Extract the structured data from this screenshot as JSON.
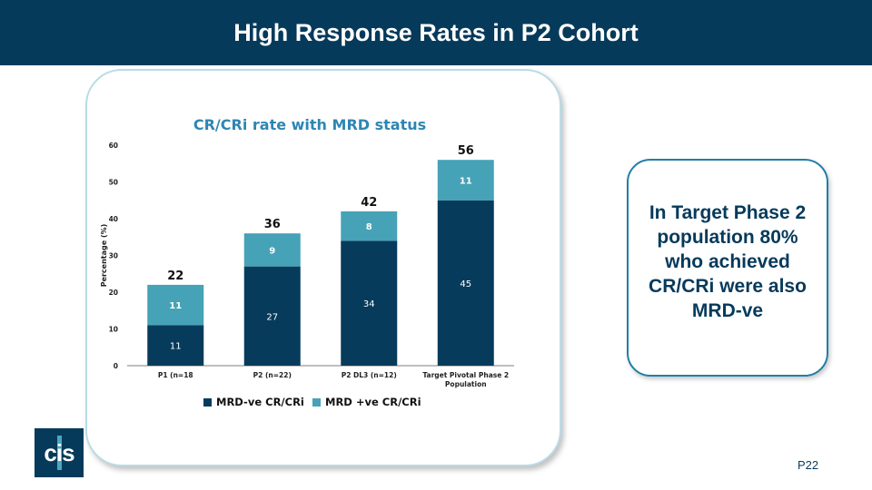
{
  "slide": {
    "title": "High Response Rates in P2 Cohort",
    "page_number": "P22",
    "callout": "In Target Phase 2 population 80% who achieved CR/CRi were also MRD-ve",
    "logo_text": "cis"
  },
  "colors": {
    "header_bg": "#063a5b",
    "mrd_neg": "#073b5c",
    "mrd_pos": "#46a2b7",
    "chart_title": "#2e86b3"
  },
  "chart_data": {
    "type": "bar",
    "stacked": true,
    "title": "CR/CRi rate with MRD status",
    "ylabel": "Percentage (%)",
    "xlabel": "",
    "ylim": [
      0,
      60
    ],
    "yticks": [
      0,
      10,
      20,
      30,
      40,
      50,
      60
    ],
    "categories": [
      [
        "P1 (n=18"
      ],
      [
        "P2 (n=22)"
      ],
      [
        "P2 DL3 (n=12)"
      ],
      [
        "Target Pivotal Phase 2",
        "Population"
      ]
    ],
    "series": [
      {
        "name": "MRD-ve CR/CRi",
        "values": [
          11,
          27,
          34,
          45
        ]
      },
      {
        "name": "MRD +ve CR/CRi",
        "values": [
          11,
          9,
          8,
          11
        ]
      }
    ],
    "totals": [
      22,
      36,
      42,
      56
    ],
    "legend": "bottom"
  }
}
